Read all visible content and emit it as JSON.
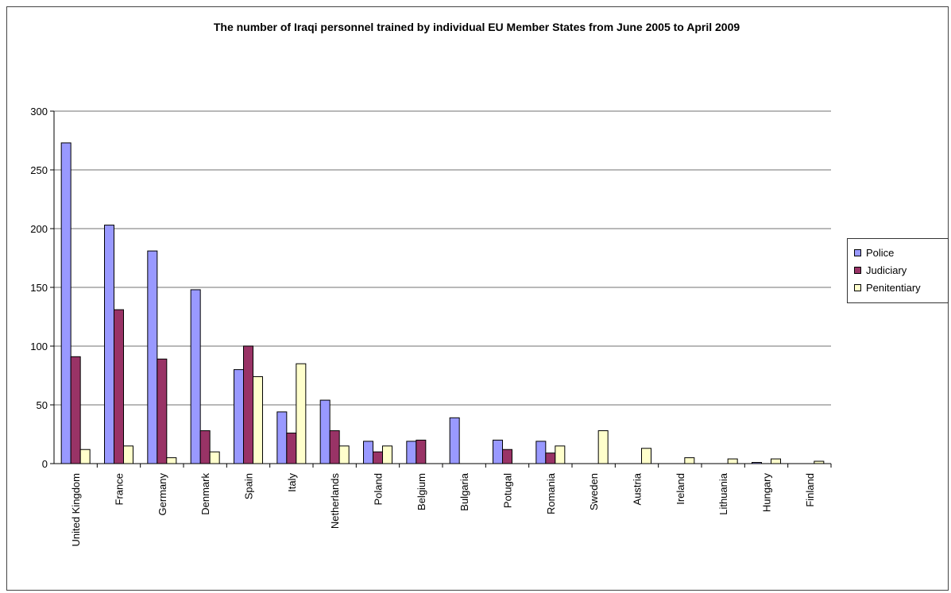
{
  "chart_data": {
    "type": "bar",
    "title": "The number of Iraqi personnel trained by individual EU Member States from June 2005 to April 2009",
    "xlabel": "",
    "ylabel": "",
    "ylim": [
      0,
      300
    ],
    "yticks": [
      0,
      50,
      100,
      150,
      200,
      250,
      300
    ],
    "grid": true,
    "legend_position": "right",
    "categories": [
      "United Kingdom",
      "France",
      "Germany",
      "Denmark",
      "Spain",
      "Italy",
      "Netherlands",
      "Poland",
      "Belgium",
      "Bulgaria",
      "Potugal",
      "Romania",
      "Sweden",
      "Austria",
      "Ireland",
      "Lithuania",
      "Hungary",
      "Finland"
    ],
    "series": [
      {
        "name": "Police",
        "color": "#9999ff",
        "values": [
          273,
          203,
          181,
          148,
          80,
          44,
          54,
          19,
          19,
          39,
          20,
          19,
          0,
          0,
          0,
          0,
          1,
          0
        ]
      },
      {
        "name": "Judiciary",
        "color": "#993366",
        "values": [
          91,
          131,
          89,
          28,
          100,
          26,
          28,
          10,
          20,
          0,
          12,
          9,
          0,
          0,
          0,
          0,
          0,
          0
        ]
      },
      {
        "name": "Penitentiary",
        "color": "#ffffcc",
        "values": [
          12,
          15,
          5,
          10,
          74,
          85,
          15,
          15,
          0,
          0,
          0,
          15,
          28,
          13,
          5,
          4,
          4,
          2
        ]
      }
    ]
  }
}
